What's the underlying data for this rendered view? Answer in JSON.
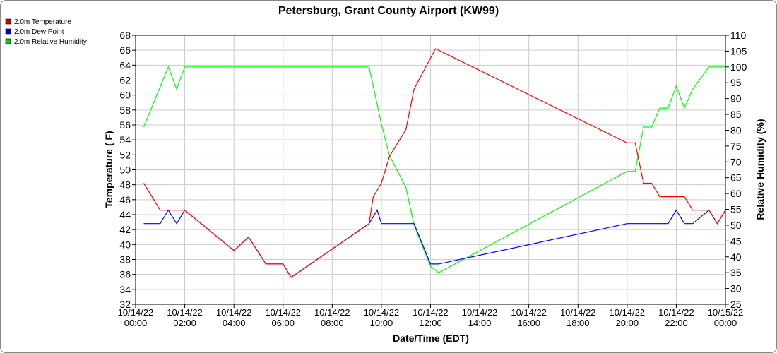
{
  "chart_data": {
    "type": "line",
    "title": "Petersburg, Grant County Airport (KW99)",
    "xlabel": "Date/Time (EDT)",
    "ylabel_left": "Temperature ( F)",
    "ylabel_right": "Relative Humidity (%)",
    "ylim_left": [
      32,
      68
    ],
    "ylim_right": [
      25,
      110
    ],
    "yticks_left": [
      32,
      34,
      36,
      38,
      40,
      42,
      44,
      46,
      48,
      50,
      52,
      54,
      56,
      58,
      60,
      62,
      64,
      66,
      68
    ],
    "yticks_right": [
      25,
      30,
      35,
      40,
      45,
      50,
      55,
      60,
      65,
      70,
      75,
      80,
      85,
      90,
      95,
      100,
      105,
      110
    ],
    "xlim_hours": [
      0,
      24
    ],
    "xticks": [
      {
        "hour": 0,
        "date": "10/14/22",
        "time": "00:00"
      },
      {
        "hour": 2,
        "date": "10/14/22",
        "time": "02:00"
      },
      {
        "hour": 4,
        "date": "10/14/22",
        "time": "04:00"
      },
      {
        "hour": 6,
        "date": "10/14/22",
        "time": "06:00"
      },
      {
        "hour": 8,
        "date": "10/14/22",
        "time": "08:00"
      },
      {
        "hour": 10,
        "date": "10/14/22",
        "time": "10:00"
      },
      {
        "hour": 12,
        "date": "10/14/22",
        "time": "12:00"
      },
      {
        "hour": 14,
        "date": "10/14/22",
        "time": "14:00"
      },
      {
        "hour": 16,
        "date": "10/14/22",
        "time": "16:00"
      },
      {
        "hour": 18,
        "date": "10/14/22",
        "time": "18:00"
      },
      {
        "hour": 20,
        "date": "10/14/22",
        "time": "20:00"
      },
      {
        "hour": 22,
        "date": "10/14/22",
        "time": "22:00"
      },
      {
        "hour": 24,
        "date": "10/15/22",
        "time": "00:00"
      }
    ],
    "grid": true,
    "legend_placement": "top-left",
    "series": [
      {
        "name": "2.0m Temperature",
        "color": "#ff0000",
        "legend_color": "#cc0000",
        "axis": "left",
        "points": [
          [
            0.33,
            48.2
          ],
          [
            1.0,
            44.6
          ],
          [
            1.67,
            44.6
          ],
          [
            2.0,
            44.6
          ],
          [
            4.0,
            39.2
          ],
          [
            4.6,
            41.0
          ],
          [
            5.3,
            37.4
          ],
          [
            6.0,
            37.4
          ],
          [
            6.33,
            35.6
          ],
          [
            9.5,
            42.8
          ],
          [
            9.67,
            46.4
          ],
          [
            10.0,
            48.2
          ],
          [
            10.33,
            51.8
          ],
          [
            11.0,
            55.4
          ],
          [
            11.33,
            60.8
          ],
          [
            12.2,
            66.2
          ],
          [
            20.0,
            53.6
          ],
          [
            20.33,
            53.6
          ],
          [
            20.67,
            48.2
          ],
          [
            21.0,
            48.2
          ],
          [
            21.33,
            46.4
          ],
          [
            22.0,
            46.4
          ],
          [
            22.33,
            46.4
          ],
          [
            22.67,
            44.6
          ],
          [
            23.33,
            44.6
          ],
          [
            23.67,
            42.8
          ],
          [
            24.0,
            44.6
          ]
        ]
      },
      {
        "name": "2.0m Dew Point",
        "color": "#0000ff",
        "legend_color": "#0000cc",
        "axis": "left",
        "points": [
          [
            0.33,
            42.8
          ],
          [
            1.0,
            42.8
          ],
          [
            1.33,
            44.6
          ],
          [
            1.67,
            42.8
          ],
          [
            2.0,
            44.6
          ],
          [
            4.0,
            39.2
          ],
          [
            4.6,
            41.0
          ],
          [
            5.3,
            37.4
          ],
          [
            6.0,
            37.4
          ],
          [
            6.33,
            35.6
          ],
          [
            9.5,
            42.8
          ],
          [
            9.83,
            44.6
          ],
          [
            10.0,
            42.8
          ],
          [
            11.33,
            42.8
          ],
          [
            12.0,
            37.4
          ],
          [
            12.33,
            37.4
          ],
          [
            20.0,
            42.8
          ],
          [
            21.67,
            42.8
          ],
          [
            22.0,
            44.6
          ],
          [
            22.33,
            42.8
          ],
          [
            22.67,
            42.8
          ],
          [
            23.33,
            44.6
          ],
          [
            23.67,
            42.8
          ],
          [
            24.0,
            44.6
          ]
        ]
      },
      {
        "name": "2.0m Relative Humidity",
        "color": "#00ff00",
        "legend_color": "#00cc00",
        "axis": "right",
        "points": [
          [
            0.33,
            81
          ],
          [
            1.33,
            100
          ],
          [
            1.67,
            93
          ],
          [
            2.0,
            100
          ],
          [
            9.5,
            100
          ],
          [
            9.67,
            94
          ],
          [
            10.0,
            82
          ],
          [
            10.33,
            72
          ],
          [
            11.0,
            62
          ],
          [
            11.33,
            50
          ],
          [
            12.0,
            37
          ],
          [
            12.33,
            35
          ],
          [
            20.0,
            67
          ],
          [
            20.33,
            67
          ],
          [
            20.67,
            81
          ],
          [
            21.0,
            81
          ],
          [
            21.33,
            87
          ],
          [
            21.67,
            87
          ],
          [
            22.0,
            94
          ],
          [
            22.33,
            87
          ],
          [
            22.67,
            93
          ],
          [
            23.33,
            100
          ],
          [
            24.0,
            100
          ]
        ]
      }
    ]
  }
}
